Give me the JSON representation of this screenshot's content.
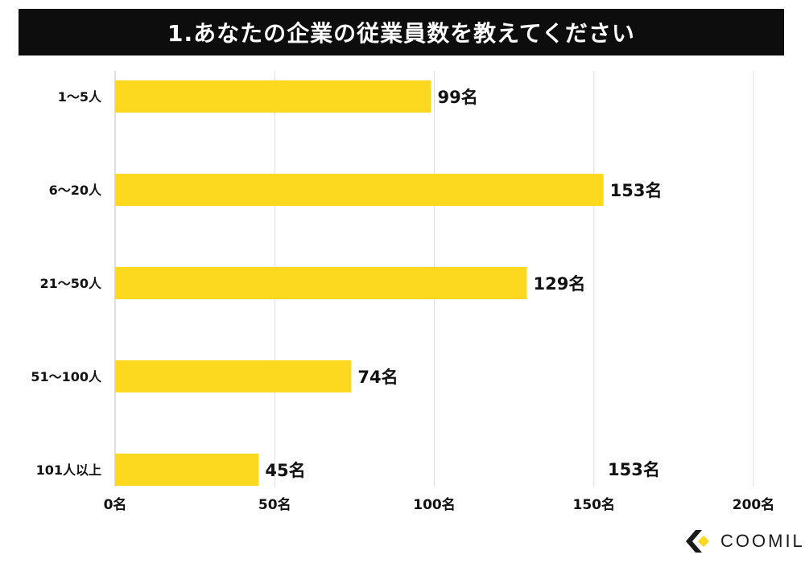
{
  "header": {
    "title": "1.あなたの企業の従業員数を教えてください"
  },
  "chart_data": {
    "type": "bar",
    "orientation": "horizontal",
    "categories": [
      "1〜5人",
      "6〜20人",
      "21〜50人",
      "51〜100人",
      "101人以上"
    ],
    "values": [
      99,
      153,
      129,
      74,
      45
    ],
    "value_labels": [
      "99名",
      "153名",
      "129名",
      "74名",
      "45名"
    ],
    "xlim": [
      0,
      200
    ],
    "x_ticks": [
      0,
      50,
      100,
      150,
      200
    ],
    "x_tick_labels": [
      "0名",
      "50名",
      "100名",
      "150名",
      "200名"
    ],
    "grid": "vertical",
    "bar_color": "#fcd91f"
  },
  "stray_label": "153名",
  "brand": {
    "name": "COOMIL",
    "accent": "#fcd91f",
    "icon": "coomil-logo-icon"
  }
}
